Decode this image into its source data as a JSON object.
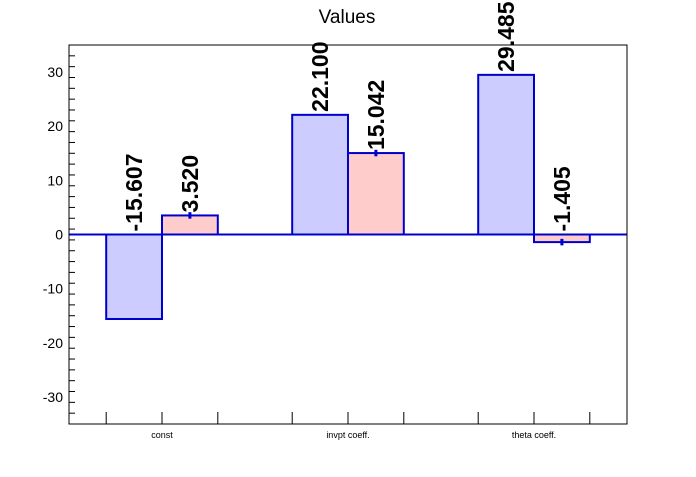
{
  "chart_data": {
    "type": "bar",
    "title": "Values",
    "xlabel": "",
    "ylabel": "",
    "categories": [
      "const",
      "invpt coeff.",
      "theta coeff."
    ],
    "series": [
      {
        "values": [
          -15.607,
          22.1,
          29.485
        ],
        "labels": [
          "-15.607",
          "22.100",
          "29.485"
        ],
        "errors": [
          0,
          0,
          0
        ],
        "fill": "#ccccff",
        "stroke": "#0000cc"
      },
      {
        "values": [
          3.52,
          15.042,
          -1.405
        ],
        "labels": [
          "3.520",
          "15.042",
          "-1.405"
        ],
        "errors": [
          0.6,
          0.6,
          0.6
        ],
        "fill": "#ffcccc",
        "stroke": "#0000cc"
      }
    ],
    "ylim": [
      -35,
      35
    ],
    "yticks": [
      -30,
      -20,
      -10,
      0,
      10,
      20,
      30
    ],
    "grid": false,
    "legend": "none",
    "colors": {
      "axis": "#000000",
      "zero_line": "#0000cc",
      "bar_stroke": "#0000cc"
    }
  }
}
